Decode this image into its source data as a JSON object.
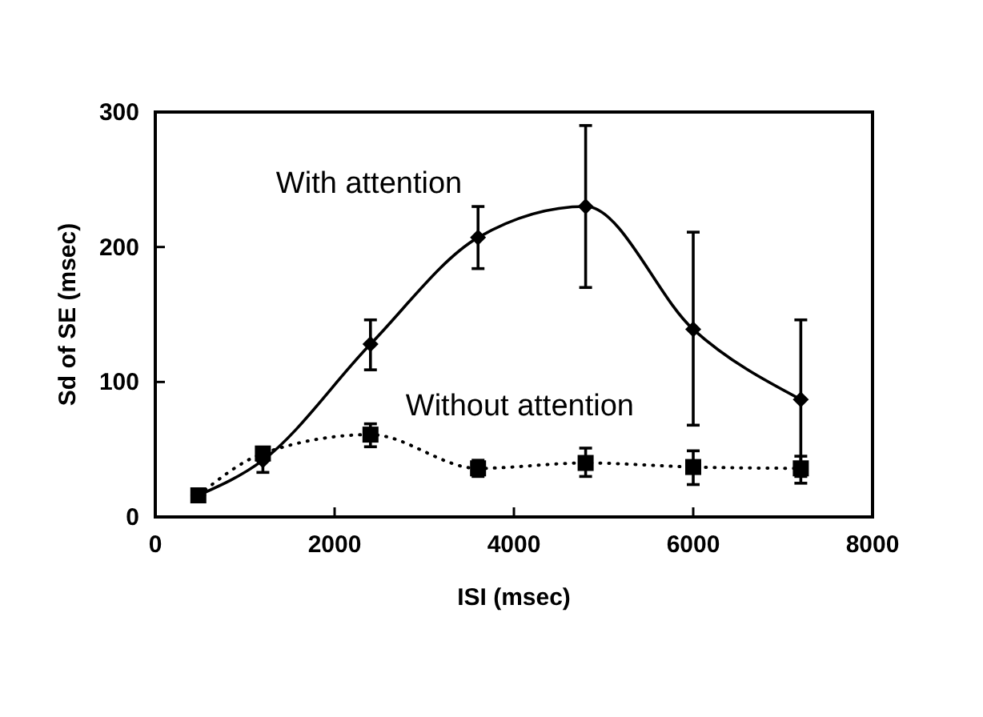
{
  "chart_data": {
    "type": "line",
    "xlabel": "ISI (msec)",
    "ylabel": "Sd of SE (msec)",
    "x": [
      480,
      1200,
      2400,
      3600,
      4800,
      6000,
      7200
    ],
    "xlim": [
      0,
      8000
    ],
    "xticks": [
      0,
      2000,
      4000,
      6000,
      8000
    ],
    "ylim": [
      0,
      300
    ],
    "yticks": [
      0,
      100,
      200,
      300
    ],
    "grid": false,
    "legend": false,
    "series": [
      {
        "name": "With attention",
        "color": "#000000",
        "marker": "diamond",
        "line_style": "solid",
        "values": [
          16,
          42,
          128,
          207,
          230,
          139,
          87
        ],
        "errors": [
          null,
          [
            33,
            42
          ],
          [
            109,
            146
          ],
          [
            184,
            230
          ],
          [
            170,
            290
          ],
          [
            68,
            211
          ],
          [
            30,
            146
          ]
        ]
      },
      {
        "name": "Without attention",
        "color": "#000000",
        "marker": "square",
        "line_style": "dotted",
        "values": [
          16,
          47,
          61,
          36,
          40,
          37,
          36
        ],
        "errors": [
          null,
          null,
          [
            52,
            69
          ],
          [
            30,
            42
          ],
          [
            30,
            51
          ],
          [
            24,
            49
          ],
          [
            25,
            45
          ]
        ]
      }
    ]
  }
}
